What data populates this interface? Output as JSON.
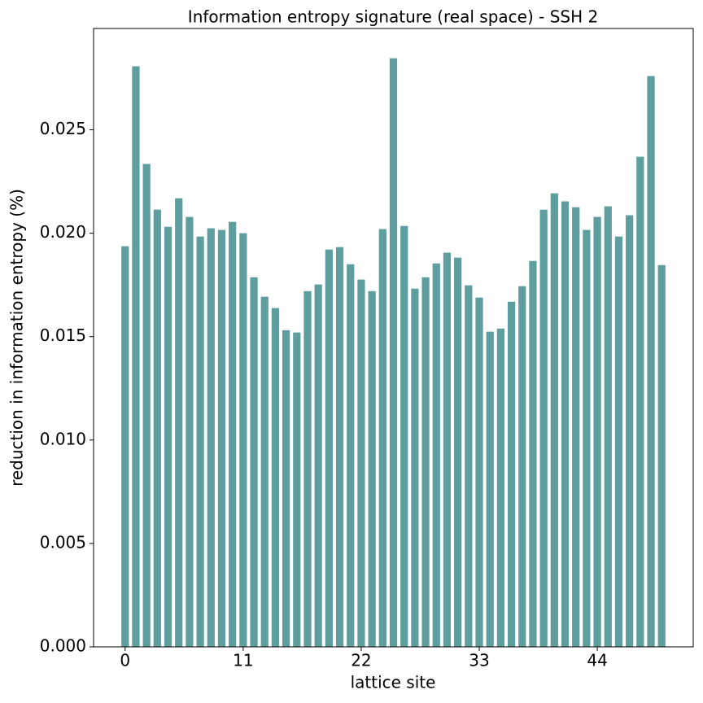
{
  "chart_data": {
    "type": "bar",
    "title": "Information entropy signature (real space) - SSH 2",
    "x_label": "lattice site",
    "y_label": "reduction in information entropy (%)",
    "color": "#5f9e9e",
    "bar_width": 0.7,
    "x": [
      0,
      1,
      2,
      3,
      4,
      5,
      6,
      7,
      8,
      9,
      10,
      11,
      12,
      13,
      14,
      15,
      16,
      17,
      18,
      19,
      20,
      21,
      22,
      23,
      24,
      25,
      26,
      27,
      28,
      29,
      30,
      31,
      32,
      33,
      34,
      35,
      36,
      37,
      38,
      39,
      40,
      41,
      42,
      43,
      44,
      45,
      46,
      47,
      48,
      49,
      50
    ],
    "values": [
      0.01937,
      0.02807,
      0.02335,
      0.02114,
      0.02031,
      0.02169,
      0.02079,
      0.01984,
      0.02024,
      0.02016,
      0.02055,
      0.02,
      0.01787,
      0.01693,
      0.01638,
      0.01531,
      0.0152,
      0.0172,
      0.01752,
      0.01921,
      0.01933,
      0.0185,
      0.01776,
      0.0172,
      0.0202,
      0.02846,
      0.02035,
      0.01732,
      0.01787,
      0.01854,
      0.01906,
      0.01882,
      0.01748,
      0.01689,
      0.01524,
      0.01539,
      0.01669,
      0.01744,
      0.01866,
      0.02114,
      0.02193,
      0.02154,
      0.02126,
      0.02016,
      0.02079,
      0.0213,
      0.01984,
      0.02087,
      0.0237,
      0.0276,
      0.01846
    ],
    "xlim": [
      -2.94,
      52.94
    ],
    "xticks": [
      0,
      11,
      22,
      33,
      44
    ],
    "ylim": [
      0,
      0.0299
    ],
    "yticks": [
      {
        "value": 0,
        "label": "0.000"
      },
      {
        "value": 0.005,
        "label": "0.005"
      },
      {
        "value": 0.01,
        "label": "0.010"
      },
      {
        "value": 0.015,
        "label": "0.015"
      },
      {
        "value": 0.02,
        "label": "0.020"
      },
      {
        "value": 0.025,
        "label": "0.025"
      }
    ]
  }
}
